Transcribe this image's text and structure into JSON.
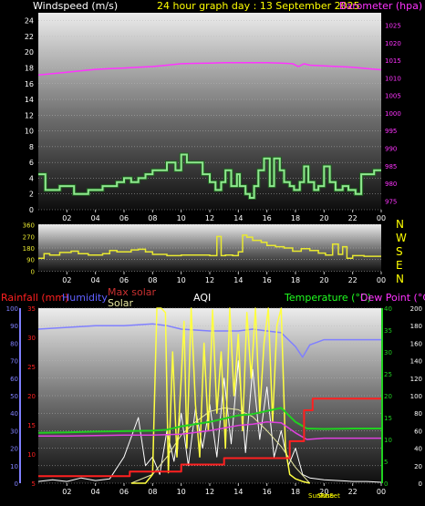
{
  "colors": {
    "windspeed": "#8fe88f",
    "barometer": "#ff33ff",
    "direction": "#e8e830",
    "rainfall": "#ff2020",
    "humidity": "#8080ff",
    "max_solar": "#e8e8a0",
    "solar": "#ffff40",
    "uv": "#ffffff",
    "temperature": "#20d020",
    "dew_point": "#e040e0",
    "title": "#ffff00",
    "label_blue": "#6060ff",
    "label_green": "#20ff20",
    "label_magenta": "#ff33ff",
    "label_red": "#ff2020"
  },
  "header": {
    "wind_label": "Windspeed (m/s)",
    "title": "24 hour graph day : 13 September 2025",
    "baro_label": "Barometer (hpa)"
  },
  "compass": [
    "N",
    "W",
    "S",
    "E",
    "N"
  ],
  "labels": {
    "rainfall": "Rainfall (mm)",
    "humidity": "Humidity",
    "max_solar": "Max solar",
    "solar": "Solar",
    "aqi": "AQI",
    "temperature": "Temperature (°C)",
    "dew_point": "Dew Point (°C)",
    "sunrise": "SunRise",
    "sunset": "SunSet"
  },
  "chart_data": [
    {
      "type": "line",
      "title": "24 hour graph day : 13 September 2025",
      "xlabel": "",
      "x_ticks": [
        "02",
        "04",
        "06",
        "08",
        "10",
        "12",
        "14",
        "16",
        "18",
        "20",
        "22",
        "00"
      ],
      "y_left": {
        "label": "Windspeed (m/s)",
        "ticks": [
          0,
          2,
          4,
          6,
          8,
          10,
          12,
          14,
          16,
          18,
          20,
          22,
          24
        ],
        "range": [
          0,
          25
        ]
      },
      "y_right": {
        "label": "Barometer (hpa)",
        "ticks": [
          975,
          980,
          985,
          990,
          995,
          1000,
          1005,
          1010,
          1015,
          1020,
          1025
        ],
        "range": [
          972.5,
          1028.5
        ]
      },
      "series": [
        {
          "name": "Windspeed (m/s)",
          "axis": "left",
          "step": true,
          "x": [
            0,
            0.5,
            1.5,
            2.5,
            3.5,
            4.5,
            5.5,
            6.0,
            6.5,
            7.0,
            7.5,
            8.0,
            9.0,
            9.6,
            10.0,
            10.4,
            11.5,
            12.0,
            12.4,
            12.8,
            13.1,
            13.5,
            13.9,
            14.1,
            14.5,
            14.8,
            15.1,
            15.4,
            15.8,
            16.2,
            16.5,
            16.9,
            17.2,
            17.6,
            17.9,
            18.3,
            18.6,
            18.9,
            19.3,
            19.6,
            20.0,
            20.4,
            20.8,
            21.3,
            21.7,
            22.2,
            22.6,
            23.0,
            23.5,
            24.0
          ],
          "y": [
            4.5,
            2.5,
            3,
            2,
            2.5,
            3,
            3.5,
            4,
            3.5,
            4,
            4.5,
            5,
            6,
            5,
            7,
            6,
            4.5,
            3.5,
            2.5,
            3.5,
            5,
            3,
            4.5,
            3,
            2,
            1.5,
            3,
            5,
            6.5,
            3,
            6.5,
            5,
            3.5,
            3,
            2.5,
            3.5,
            5.5,
            3.5,
            2.5,
            3,
            5.5,
            3.5,
            2.5,
            3,
            2.5,
            2,
            4.5,
            4.5,
            5,
            5
          ]
        },
        {
          "name": "Barometer (hpa)",
          "axis": "right",
          "x": [
            0,
            1,
            2,
            3,
            4,
            5,
            6,
            7,
            8,
            9,
            10,
            11,
            12,
            13,
            14,
            15,
            16,
            17,
            17.8,
            18.2,
            18.6,
            19,
            20,
            21,
            22,
            23,
            24
          ],
          "y": [
            1010.8,
            1011.2,
            1011.6,
            1012.0,
            1012.4,
            1012.6,
            1012.8,
            1013.0,
            1013.2,
            1013.6,
            1014.0,
            1014.1,
            1014.2,
            1014.3,
            1014.3,
            1014.3,
            1014.3,
            1014.2,
            1014.0,
            1013.2,
            1014.0,
            1013.6,
            1013.4,
            1013.2,
            1013.0,
            1012.6,
            1012.3
          ]
        }
      ]
    },
    {
      "type": "line",
      "title": "",
      "x_ticks": [
        "02",
        "04",
        "06",
        "08",
        "10",
        "12",
        "14",
        "16",
        "18",
        "20",
        "22",
        "00"
      ],
      "y_left": {
        "ticks": [
          0,
          90,
          180,
          270,
          360
        ],
        "range": [
          -5,
          365
        ]
      },
      "series": [
        {
          "name": "Wind direction",
          "axis": "left",
          "step": true,
          "x": [
            0,
            0.4,
            0.8,
            1.5,
            2.3,
            2.8,
            3.5,
            4.5,
            5.0,
            5.5,
            6.5,
            7.0,
            7.5,
            8.0,
            9.0,
            10.0,
            11.0,
            12.0,
            12.5,
            12.8,
            13.1,
            13.6,
            14.0,
            14.3,
            14.6,
            15.0,
            15.6,
            16.0,
            16.6,
            17.2,
            17.8,
            18.4,
            19.0,
            19.6,
            20.1,
            20.6,
            21.0,
            21.3,
            21.6,
            22.0,
            22.8,
            24.0
          ],
          "y": [
            100,
            135,
            125,
            145,
            155,
            135,
            125,
            135,
            160,
            150,
            165,
            170,
            150,
            130,
            120,
            125,
            125,
            120,
            270,
            120,
            125,
            120,
            150,
            280,
            265,
            240,
            225,
            200,
            190,
            180,
            155,
            175,
            160,
            140,
            125,
            210,
            130,
            190,
            100,
            120,
            115,
            115
          ]
        }
      ]
    },
    {
      "type": "line",
      "title": "",
      "x_ticks": [
        "02",
        "04",
        "06",
        "08",
        "10",
        "12",
        "14",
        "16",
        "18",
        "20",
        "22",
        "00"
      ],
      "y_left_outer": {
        "label": "Rainfall (mm)",
        "ticks": [
          0,
          10,
          20,
          30,
          40,
          50,
          60,
          70,
          80,
          90,
          100
        ],
        "range": [
          0,
          100
        ]
      },
      "y_left_inner": {
        "label": "Humidity",
        "ticks": [
          5,
          10,
          15,
          20,
          25,
          30,
          35
        ],
        "range": [
          5,
          35
        ]
      },
      "y_right_inner": {
        "label": "Temperature (°C)",
        "ticks": [
          0,
          5,
          10,
          15,
          20,
          25,
          30,
          35,
          40
        ],
        "range": [
          0,
          40
        ]
      },
      "y_right_outer": {
        "label": "Solar",
        "ticks": [
          0,
          20,
          40,
          60,
          80,
          100,
          120,
          140,
          160,
          180,
          200
        ],
        "range": [
          0,
          200
        ]
      },
      "series": [
        {
          "name": "Humidity",
          "axis": "left_outer",
          "x": [
            0,
            2,
            4,
            6,
            8,
            9,
            10,
            12,
            14,
            15,
            16,
            17,
            18,
            18.5,
            19,
            20,
            22,
            24
          ],
          "y": [
            88,
            89,
            90,
            90,
            91,
            90,
            88,
            87,
            87,
            88,
            87,
            86,
            78,
            72,
            79,
            82,
            82,
            82
          ]
        },
        {
          "name": "Rainfall (mm)",
          "axis": "left_inner",
          "step": true,
          "x": [
            0,
            6.4,
            10.0,
            13.0,
            17.6,
            18.6,
            19.2,
            24.0
          ],
          "y": [
            6.2,
            7.0,
            8.2,
            9.3,
            12.2,
            17.5,
            19.5,
            19.5
          ]
        },
        {
          "name": "Max solar",
          "axis": "right_outer",
          "x": [
            6.5,
            8,
            9,
            10,
            11,
            12,
            13,
            14,
            15,
            16,
            17,
            18,
            19
          ],
          "y": [
            0,
            10,
            30,
            55,
            70,
            82,
            86,
            84,
            76,
            60,
            42,
            18,
            0
          ]
        },
        {
          "name": "Solar",
          "axis": "right_outer",
          "x": [
            6.5,
            7.5,
            8.0,
            8.3,
            8.6,
            8.9,
            9.1,
            9.4,
            9.7,
            10.0,
            10.2,
            10.4,
            10.7,
            11.0,
            11.3,
            11.6,
            11.9,
            12.2,
            12.5,
            12.8,
            13.1,
            13.4,
            13.7,
            14.0,
            14.3,
            14.6,
            14.9,
            15.2,
            15.5,
            15.8,
            16.1,
            16.4,
            16.7,
            17.0,
            17.3,
            17.6,
            18.0,
            18.5,
            19.0
          ],
          "y": [
            0,
            0,
            10,
            200,
            200,
            195,
            12,
            150,
            30,
            120,
            185,
            40,
            200,
            90,
            30,
            160,
            60,
            198,
            80,
            150,
            40,
            200,
            100,
            170,
            60,
            195,
            120,
            200,
            80,
            160,
            200,
            70,
            180,
            200,
            40,
            10,
            5,
            2,
            0
          ]
        },
        {
          "name": "UV",
          "axis": "right_outer",
          "x": [
            0,
            1,
            2,
            3,
            4,
            5,
            6,
            7,
            7.5,
            8,
            8.5,
            9,
            9.5,
            10,
            10.5,
            11,
            11.5,
            12,
            12.5,
            13,
            13.5,
            14,
            14.5,
            15,
            15.5,
            16,
            16.5,
            17,
            17.5,
            18,
            18.5,
            19,
            20,
            21,
            22,
            23,
            24
          ],
          "y": [
            2,
            4,
            2,
            6,
            3,
            5,
            30,
            75,
            20,
            30,
            10,
            60,
            25,
            80,
            20,
            85,
            40,
            90,
            30,
            120,
            45,
            140,
            35,
            130,
            50,
            110,
            30,
            60,
            20,
            40,
            10,
            6,
            4,
            3,
            2,
            2,
            1
          ]
        },
        {
          "name": "Temperature (°C)",
          "axis": "right_inner",
          "x": [
            0,
            2,
            4,
            6,
            8,
            9,
            10,
            12,
            14,
            15,
            16,
            17,
            18,
            18.8,
            20,
            22,
            24
          ],
          "y": [
            11.5,
            11.6,
            11.8,
            11.9,
            12.0,
            12.2,
            13.0,
            14.0,
            15.5,
            15.8,
            16.5,
            17.2,
            14.0,
            12.5,
            12.4,
            12.5,
            12.5
          ]
        },
        {
          "name": "Dew Point (°C)",
          "axis": "right_inner",
          "x": [
            0,
            2,
            4,
            6,
            8,
            10,
            12,
            14,
            15,
            16,
            17,
            18,
            18.8,
            20,
            22,
            24
          ],
          "y": [
            10.8,
            10.8,
            10.9,
            11.0,
            11.0,
            11.2,
            12.0,
            13.2,
            13.5,
            14.0,
            13.8,
            11.5,
            10.0,
            10.3,
            10.3,
            10.3
          ]
        }
      ]
    }
  ]
}
